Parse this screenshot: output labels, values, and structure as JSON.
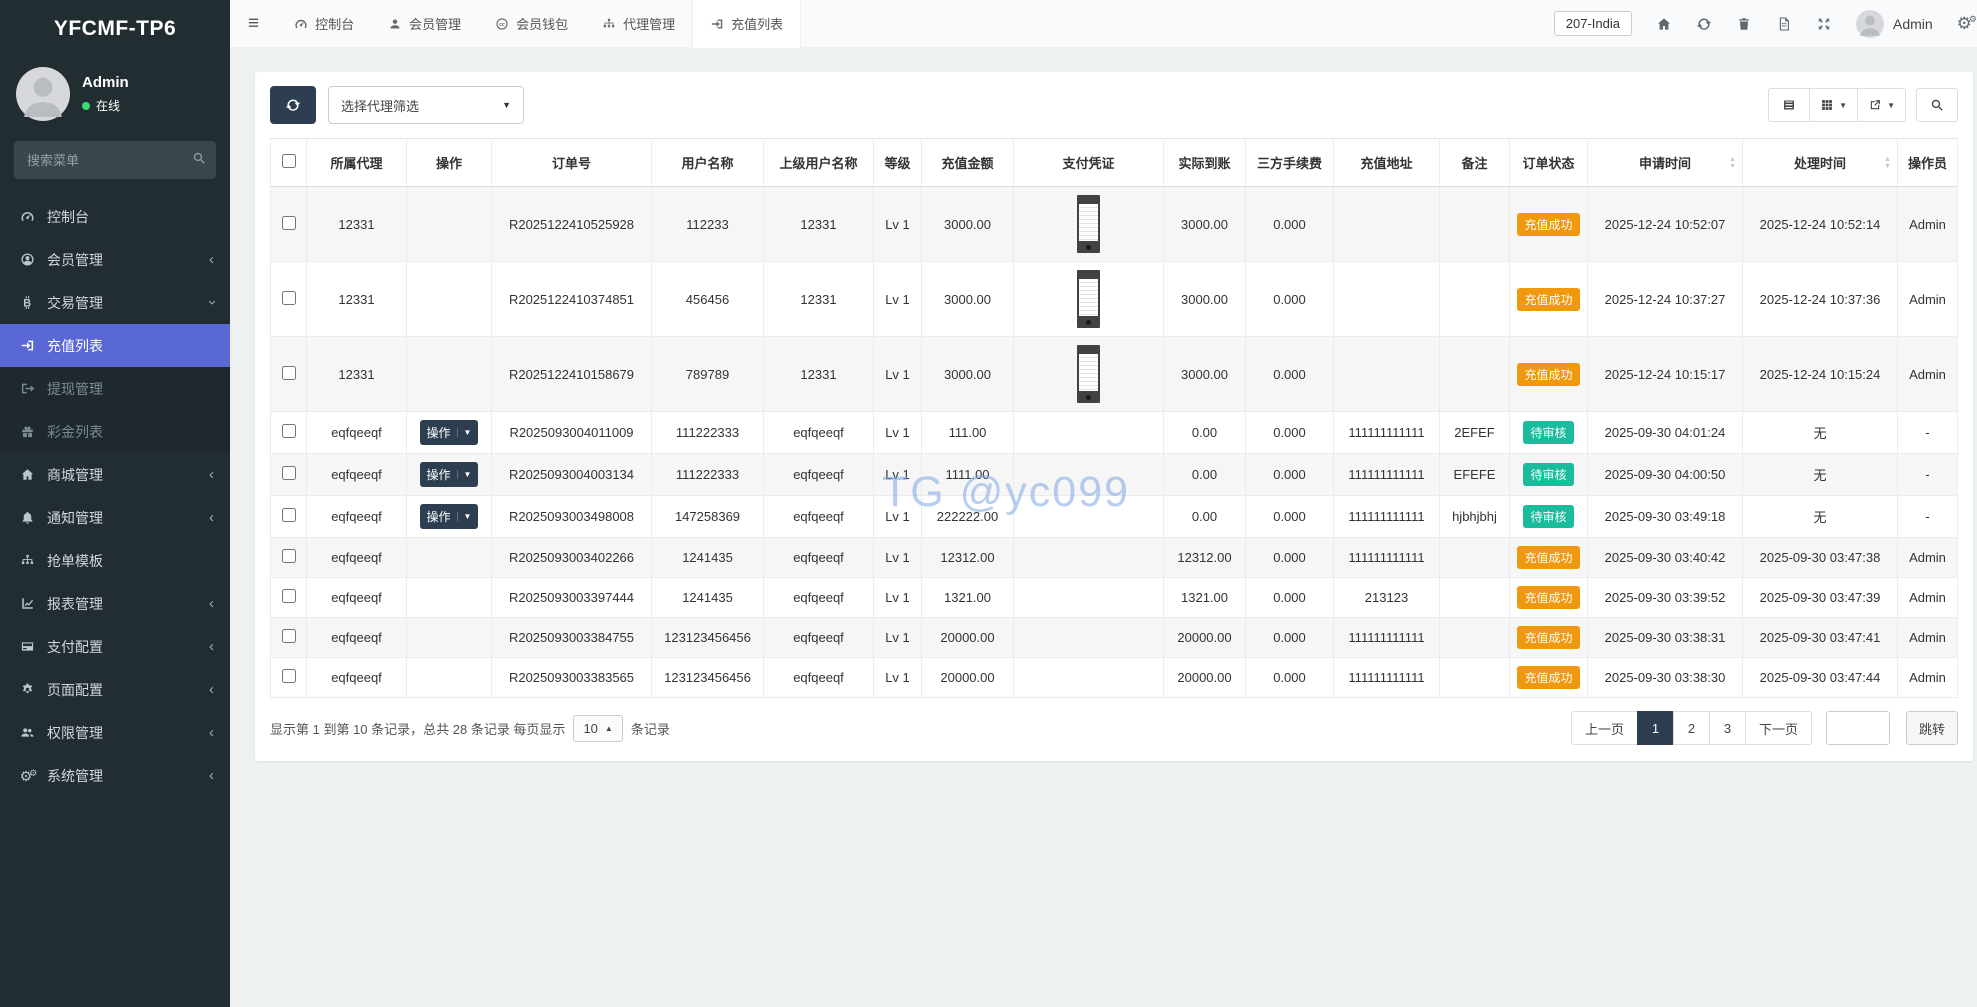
{
  "sidebar": {
    "logo": "YFCMF-TP6",
    "user": {
      "name": "Admin",
      "status": "在线"
    },
    "search_placeholder": "搜索菜单",
    "items": [
      {
        "label": "控制台",
        "icon": "tachometer-icon"
      },
      {
        "label": "会员管理",
        "icon": "user-circle-icon"
      },
      {
        "label": "交易管理",
        "icon": "bitcoin-icon",
        "expanded": true
      },
      {
        "label": "充值列表",
        "icon": "sign-in-icon",
        "active": true
      },
      {
        "label": "提现管理",
        "icon": "sign-out-icon"
      },
      {
        "label": "彩金列表",
        "icon": "gift-icon"
      },
      {
        "label": "商城管理",
        "icon": "home-icon"
      },
      {
        "label": "通知管理",
        "icon": "bell-icon"
      },
      {
        "label": "抢单模板",
        "icon": "sitemap-icon"
      },
      {
        "label": "报表管理",
        "icon": "chart-line-icon"
      },
      {
        "label": "支付配置",
        "icon": "credit-card-icon"
      },
      {
        "label": "页面配置",
        "icon": "gear-icon"
      },
      {
        "label": "权限管理",
        "icon": "users-icon"
      },
      {
        "label": "系统管理",
        "icon": "cogs-icon"
      }
    ]
  },
  "navbar": {
    "tabs": [
      {
        "label": "控制台",
        "icon": "tachometer-icon"
      },
      {
        "label": "会员管理",
        "icon": "user-icon"
      },
      {
        "label": "会员钱包",
        "icon": "cc-circle-icon"
      },
      {
        "label": "代理管理",
        "icon": "sitemap-icon"
      },
      {
        "label": "充值列表",
        "icon": "sign-in-icon",
        "active": true
      }
    ],
    "right": {
      "region_button": "207-India",
      "user_name": "Admin"
    }
  },
  "toolbar": {
    "filter_placeholder": "选择代理筛选"
  },
  "watermark": "TG @yc099",
  "table": {
    "op_button_label": "操作",
    "headers": [
      "所属代理",
      "操作",
      "订单号",
      "用户名称",
      "上级用户名称",
      "等级",
      "充值金额",
      "支付凭证",
      "实际到账",
      "三方手续费",
      "充值地址",
      "备注",
      "订单状态",
      "申请时间",
      "处理时间",
      "操作员"
    ],
    "rows": [
      {
        "agent": "12331",
        "has_op_button": false,
        "order_no": "R2025122410525928",
        "username": "112233",
        "parent": "12331",
        "level": "Lv 1",
        "amount": "3000.00",
        "has_voucher": true,
        "actual": "3000.00",
        "fee": "0.000",
        "address": "",
        "remark": "",
        "status": "充值成功",
        "status_type": "success",
        "apply_time": "2025-12-24 10:52:07",
        "process_time": "2025-12-24 10:52:14",
        "operator": "Admin"
      },
      {
        "agent": "12331",
        "has_op_button": false,
        "order_no": "R2025122410374851",
        "username": "456456",
        "parent": "12331",
        "level": "Lv 1",
        "amount": "3000.00",
        "has_voucher": true,
        "actual": "3000.00",
        "fee": "0.000",
        "address": "",
        "remark": "",
        "status": "充值成功",
        "status_type": "success",
        "apply_time": "2025-12-24 10:37:27",
        "process_time": "2025-12-24 10:37:36",
        "operator": "Admin"
      },
      {
        "agent": "12331",
        "has_op_button": false,
        "order_no": "R2025122410158679",
        "username": "789789",
        "parent": "12331",
        "level": "Lv 1",
        "amount": "3000.00",
        "has_voucher": true,
        "actual": "3000.00",
        "fee": "0.000",
        "address": "",
        "remark": "",
        "status": "充值成功",
        "status_type": "success",
        "apply_time": "2025-12-24 10:15:17",
        "process_time": "2025-12-24 10:15:24",
        "operator": "Admin"
      },
      {
        "agent": "eqfqeeqf",
        "has_op_button": true,
        "order_no": "R2025093004011009",
        "username": "111222333",
        "parent": "eqfqeeqf",
        "level": "Lv 1",
        "amount": "111.00",
        "has_voucher": false,
        "actual": "0.00",
        "fee": "0.000",
        "address": "111111111111",
        "remark": "2EFEF",
        "status": "待审核",
        "status_type": "pending",
        "apply_time": "2025-09-30 04:01:24",
        "process_time": "无",
        "operator": "-"
      },
      {
        "agent": "eqfqeeqf",
        "has_op_button": true,
        "order_no": "R2025093004003134",
        "username": "111222333",
        "parent": "eqfqeeqf",
        "level": "Lv 1",
        "amount": "1111.00",
        "has_voucher": false,
        "actual": "0.00",
        "fee": "0.000",
        "address": "111111111111",
        "remark": "EFEFE",
        "status": "待审核",
        "status_type": "pending",
        "apply_time": "2025-09-30 04:00:50",
        "process_time": "无",
        "operator": "-"
      },
      {
        "agent": "eqfqeeqf",
        "has_op_button": true,
        "order_no": "R2025093003498008",
        "username": "147258369",
        "parent": "eqfqeeqf",
        "level": "Lv 1",
        "amount": "222222.00",
        "has_voucher": false,
        "actual": "0.00",
        "fee": "0.000",
        "address": "111111111111",
        "remark": "hjbhjbhj",
        "status": "待审核",
        "status_type": "pending",
        "apply_time": "2025-09-30 03:49:18",
        "process_time": "无",
        "operator": "-"
      },
      {
        "agent": "eqfqeeqf",
        "has_op_button": false,
        "order_no": "R2025093003402266",
        "username": "1241435",
        "parent": "eqfqeeqf",
        "level": "Lv 1",
        "amount": "12312.00",
        "has_voucher": false,
        "actual": "12312.00",
        "fee": "0.000",
        "address": "111111111111",
        "remark": "",
        "status": "充值成功",
        "status_type": "success",
        "apply_time": "2025-09-30 03:40:42",
        "process_time": "2025-09-30 03:47:38",
        "operator": "Admin"
      },
      {
        "agent": "eqfqeeqf",
        "has_op_button": false,
        "order_no": "R2025093003397444",
        "username": "1241435",
        "parent": "eqfqeeqf",
        "level": "Lv 1",
        "amount": "1321.00",
        "has_voucher": false,
        "actual": "1321.00",
        "fee": "0.000",
        "address": "213123",
        "remark": "",
        "status": "充值成功",
        "status_type": "success",
        "apply_time": "2025-09-30 03:39:52",
        "process_time": "2025-09-30 03:47:39",
        "operator": "Admin"
      },
      {
        "agent": "eqfqeeqf",
        "has_op_button": false,
        "order_no": "R2025093003384755",
        "username": "123123456456",
        "parent": "eqfqeeqf",
        "level": "Lv 1",
        "amount": "20000.00",
        "has_voucher": false,
        "actual": "20000.00",
        "fee": "0.000",
        "address": "111111111111",
        "remark": "",
        "status": "充值成功",
        "status_type": "success",
        "apply_time": "2025-09-30 03:38:31",
        "process_time": "2025-09-30 03:47:41",
        "operator": "Admin"
      },
      {
        "agent": "eqfqeeqf",
        "has_op_button": false,
        "order_no": "R2025093003383565",
        "username": "123123456456",
        "parent": "eqfqeeqf",
        "level": "Lv 1",
        "amount": "20000.00",
        "has_voucher": false,
        "actual": "20000.00",
        "fee": "0.000",
        "address": "111111111111",
        "remark": "",
        "status": "充值成功",
        "status_type": "success",
        "apply_time": "2025-09-30 03:38:30",
        "process_time": "2025-09-30 03:47:44",
        "operator": "Admin"
      }
    ]
  },
  "footer": {
    "summary_prefix": "显示第 1 到第 10 条记录，总共 28 条记录 每页显示",
    "page_size": "10",
    "summary_suffix": "条记录",
    "pagination": {
      "prev": "上一页",
      "pages": [
        "1",
        "2",
        "3"
      ],
      "active_page": "1",
      "next": "下一页",
      "jump": "跳转"
    }
  },
  "colors": {
    "sidebar_bg": "#222d32",
    "submenu_bg": "#1e282d",
    "active_menu_blue": "#5a68d6",
    "navy_button": "#2c3e50",
    "badge_success_orange": "#f0990e",
    "badge_pending_teal": "#1abc9c",
    "online_green": "#3adb76",
    "page_bg": "#eef1f2",
    "watermark_blue": "rgba(125,165,230,0.55)"
  }
}
